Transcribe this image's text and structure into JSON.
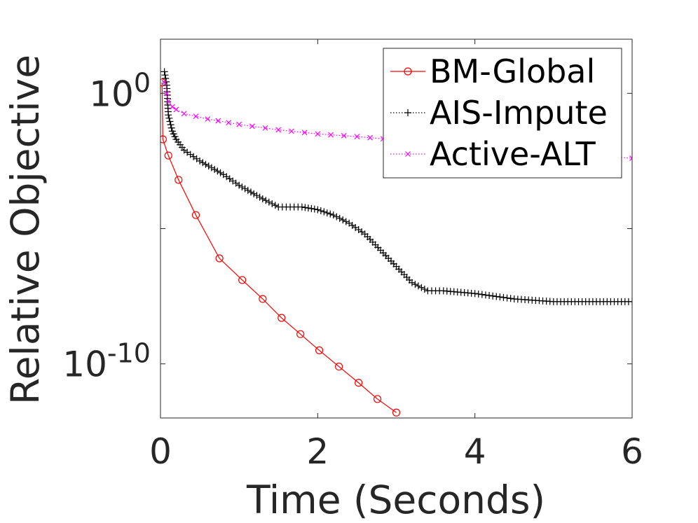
{
  "chart_data": {
    "type": "line",
    "xlabel": "Time (Seconds)",
    "ylabel": "Relative Objective",
    "xlim": [
      0,
      6
    ],
    "ylim_log10": [
      -12,
      2
    ],
    "y_scale": "log",
    "x_ticks": [
      0,
      2,
      4,
      6
    ],
    "x_tick_labels": [
      "0",
      "2",
      "4",
      "6"
    ],
    "y_ticks_log10": [
      -10,
      0
    ],
    "y_tick_labels": [
      {
        "base": "10",
        "exp": "-10"
      },
      {
        "base": "10",
        "exp": "0"
      }
    ],
    "legend": {
      "position": "top-right"
    },
    "grid": false,
    "series": [
      {
        "name": "BM-Global",
        "color": "#ff0000",
        "marker": "circle",
        "line": "solid",
        "x": [
          0.02,
          0.03,
          0.1,
          0.23,
          0.45,
          0.75,
          1.04,
          1.3,
          1.54,
          1.78,
          2.02,
          2.27,
          2.52,
          2.76,
          3.0
        ],
        "log10_y": [
          0.4,
          -1.7,
          -2.3,
          -3.2,
          -4.5,
          -6.1,
          -6.9,
          -7.6,
          -8.3,
          -8.9,
          -9.5,
          -10.1,
          -10.7,
          -11.3,
          -11.8
        ]
      },
      {
        "name": "AIS-Impute",
        "color": "#000000",
        "marker": "plus",
        "line": "dotted",
        "x": [
          0.05,
          0.08,
          0.1,
          0.15,
          0.2,
          0.3,
          0.5,
          0.8,
          1.0,
          1.3,
          1.5,
          1.6,
          1.8,
          2.0,
          2.2,
          2.4,
          2.6,
          2.8,
          3.0,
          3.2,
          3.4,
          3.6,
          4.0,
          4.5,
          5.0,
          5.5,
          6.0
        ],
        "log10_y": [
          0.8,
          0.3,
          -0.8,
          -1.4,
          -1.7,
          -2.1,
          -2.5,
          -3.0,
          -3.4,
          -3.9,
          -4.2,
          -4.2,
          -4.2,
          -4.3,
          -4.5,
          -4.8,
          -5.2,
          -5.8,
          -6.4,
          -7.0,
          -7.3,
          -7.3,
          -7.4,
          -7.6,
          -7.7,
          -7.7,
          -7.7
        ]
      },
      {
        "name": "Active-ALT",
        "color": "#ff00ff",
        "marker": "x",
        "line": "dotted",
        "x": [
          0.05,
          0.08,
          0.1,
          0.15,
          0.2,
          0.3,
          0.6,
          1.0,
          1.5,
          2.0,
          2.5,
          3.0,
          3.5,
          4.0,
          4.5,
          5.0,
          5.5,
          6.0
        ],
        "log10_y": [
          0.4,
          0.0,
          -0.3,
          -0.5,
          -0.6,
          -0.75,
          -0.95,
          -1.15,
          -1.35,
          -1.5,
          -1.6,
          -1.72,
          -1.85,
          -1.97,
          -2.1,
          -2.2,
          -2.3,
          -2.4
        ]
      }
    ]
  }
}
